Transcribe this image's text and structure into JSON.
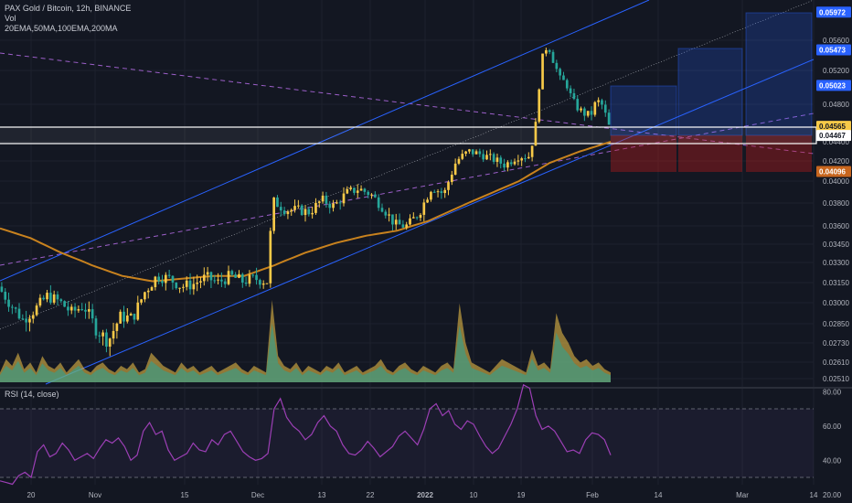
{
  "legend": {
    "title": "PAX Gold / Bitcoin, 12h, BINANCE",
    "vol": "Vol",
    "emas": "20EMA,50MA,100EMA,200MA"
  },
  "rsi": {
    "label": "RSI (14, close)"
  },
  "colors": {
    "background": "#131722",
    "bull": "#f7c948",
    "bear": "#26a69a",
    "ema": "#c8821e",
    "channel": "#2962ff",
    "dashed": "#9c5fc9",
    "box_profit": "#2962ff",
    "box_loss": "#b71c1c",
    "rsi_line": "#9c3fb5"
  },
  "chart_data": {
    "type": "candlestick",
    "symbol": "PAXG/BTC",
    "timeframe": "12h",
    "exchange": "BINANCE",
    "y_ticks": [
      "0.05600",
      "0.05200",
      "0.04800",
      "0.04400",
      "0.04200",
      "0.04000",
      "0.03800",
      "0.03600",
      "0.03450",
      "0.03300",
      "0.03150",
      "0.03000",
      "0.02850",
      "0.02730",
      "0.02610",
      "0.02510"
    ],
    "x_ticks": [
      "20",
      "Nov",
      "15",
      "Dec",
      "13",
      "22",
      "2022",
      "10",
      "19",
      "Feb",
      "14",
      "Mar",
      "14"
    ],
    "price_badges": [
      {
        "label": "0.05972",
        "color": "#2962ff"
      },
      {
        "label": "0.05473",
        "color": "#2962ff"
      },
      {
        "label": "0.05023",
        "color": "#2962ff"
      },
      {
        "label": "0.04565",
        "color": "#f7c948"
      },
      {
        "label": "0.04467",
        "color": "#ffffff"
      },
      {
        "label": "0.04096",
        "color": "#c8661e"
      }
    ],
    "rsi_ticks": [
      "80.00",
      "60.00",
      "40.00",
      "20.00"
    ],
    "rsi_levels": [
      70,
      30
    ],
    "close_path": [
      [
        0.0,
        0.0312
      ],
      [
        0.02,
        0.0299
      ],
      [
        0.04,
        0.0288
      ],
      [
        0.06,
        0.0295
      ],
      [
        0.08,
        0.0305
      ],
      [
        0.1,
        0.0301
      ],
      [
        0.12,
        0.0293
      ],
      [
        0.14,
        0.0298
      ],
      [
        0.16,
        0.0282
      ],
      [
        0.18,
        0.0274
      ],
      [
        0.2,
        0.029
      ],
      [
        0.22,
        0.0289
      ],
      [
        0.24,
        0.0308
      ],
      [
        0.26,
        0.032
      ],
      [
        0.28,
        0.0318
      ],
      [
        0.3,
        0.0312
      ],
      [
        0.32,
        0.0314
      ],
      [
        0.34,
        0.0319
      ],
      [
        0.36,
        0.0315
      ],
      [
        0.38,
        0.032
      ],
      [
        0.4,
        0.0316
      ],
      [
        0.42,
        0.0318
      ],
      [
        0.44,
        0.0316
      ],
      [
        0.45,
        0.0382
      ],
      [
        0.47,
        0.0374
      ],
      [
        0.49,
        0.0374
      ],
      [
        0.51,
        0.0372
      ],
      [
        0.53,
        0.0383
      ],
      [
        0.55,
        0.0377
      ],
      [
        0.57,
        0.0389
      ],
      [
        0.59,
        0.0393
      ],
      [
        0.61,
        0.0388
      ],
      [
        0.63,
        0.0376
      ],
      [
        0.65,
        0.0361
      ],
      [
        0.67,
        0.036
      ],
      [
        0.69,
        0.0372
      ],
      [
        0.71,
        0.0395
      ],
      [
        0.73,
        0.0388
      ],
      [
        0.75,
        0.042
      ],
      [
        0.77,
        0.043
      ],
      [
        0.79,
        0.0427
      ],
      [
        0.81,
        0.0422
      ],
      [
        0.83,
        0.0416
      ],
      [
        0.85,
        0.0425
      ],
      [
        0.87,
        0.0425
      ],
      [
        0.88,
        0.0458
      ],
      [
        0.89,
        0.0535
      ],
      [
        0.9,
        0.0555
      ],
      [
        0.91,
        0.053
      ],
      [
        0.92,
        0.051
      ],
      [
        0.93,
        0.0505
      ],
      [
        0.94,
        0.0485
      ],
      [
        0.95,
        0.0475
      ],
      [
        0.96,
        0.047
      ],
      [
        0.97,
        0.0468
      ],
      [
        0.98,
        0.0485
      ],
      [
        0.99,
        0.0478
      ],
      [
        1.0,
        0.04565
      ]
    ],
    "ema_path": [
      [
        0.0,
        0.0358
      ],
      [
        0.05,
        0.035
      ],
      [
        0.1,
        0.0338
      ],
      [
        0.15,
        0.0328
      ],
      [
        0.2,
        0.032
      ],
      [
        0.25,
        0.0316
      ],
      [
        0.3,
        0.0318
      ],
      [
        0.35,
        0.032
      ],
      [
        0.4,
        0.032
      ],
      [
        0.45,
        0.0328
      ],
      [
        0.5,
        0.0338
      ],
      [
        0.55,
        0.0346
      ],
      [
        0.6,
        0.0352
      ],
      [
        0.65,
        0.0356
      ],
      [
        0.7,
        0.0364
      ],
      [
        0.75,
        0.0376
      ],
      [
        0.8,
        0.0388
      ],
      [
        0.85,
        0.04
      ],
      [
        0.9,
        0.0418
      ],
      [
        0.95,
        0.043
      ],
      [
        1.0,
        0.044
      ]
    ],
    "volume_profile": [
      0.3,
      0.7,
      0.5,
      0.9,
      0.4,
      0.6,
      0.3,
      0.8,
      0.5,
      0.4,
      0.6,
      0.3,
      0.5,
      0.7,
      0.4,
      0.3,
      0.5,
      0.6,
      0.4,
      0.3,
      0.5,
      0.4,
      0.6,
      0.3,
      0.4,
      0.9,
      0.7,
      0.5,
      0.4,
      0.3,
      0.6,
      0.4,
      0.5,
      0.3,
      0.4,
      0.5,
      0.3,
      0.4,
      0.5,
      0.6,
      0.4,
      0.3,
      0.5,
      0.4,
      0.3,
      2.5,
      0.8,
      0.5,
      0.4,
      0.6,
      0.3,
      0.5,
      0.4,
      0.3,
      0.5,
      0.4,
      0.6,
      0.3,
      0.4,
      0.5,
      0.3,
      0.4,
      0.5,
      0.7,
      0.4,
      0.3,
      0.5,
      0.6,
      0.4,
      0.3,
      0.5,
      0.4,
      0.3,
      0.5,
      0.6,
      0.4,
      2.4,
      1.2,
      0.6,
      0.5,
      0.4,
      0.3,
      0.5,
      0.7,
      0.6,
      0.5,
      0.4,
      0.3,
      1.0,
      0.5,
      0.6,
      0.4,
      2.1,
      1.5,
      1.2,
      0.8,
      0.6,
      0.7,
      0.5,
      0.6,
      0.4,
      0.3
    ],
    "rsi_path": [
      28,
      27,
      26,
      31,
      33,
      30,
      45,
      49,
      42,
      44,
      50,
      46,
      40,
      42,
      44,
      41,
      47,
      52,
      50,
      53,
      48,
      40,
      43,
      57,
      62,
      55,
      57,
      46,
      40,
      42,
      44,
      50,
      46,
      45,
      52,
      49,
      55,
      57,
      51,
      45,
      42,
      40,
      41,
      44,
      70,
      76,
      65,
      60,
      57,
      52,
      55,
      62,
      66,
      60,
      57,
      49,
      44,
      43,
      46,
      51,
      47,
      42,
      45,
      48,
      54,
      57,
      53,
      49,
      58,
      70,
      73,
      66,
      69,
      61,
      58,
      63,
      61,
      54,
      48,
      44,
      47,
      54,
      61,
      70,
      84,
      82,
      66,
      58,
      60,
      57,
      51,
      45,
      46,
      44,
      52,
      56,
      55,
      52,
      43
    ]
  }
}
